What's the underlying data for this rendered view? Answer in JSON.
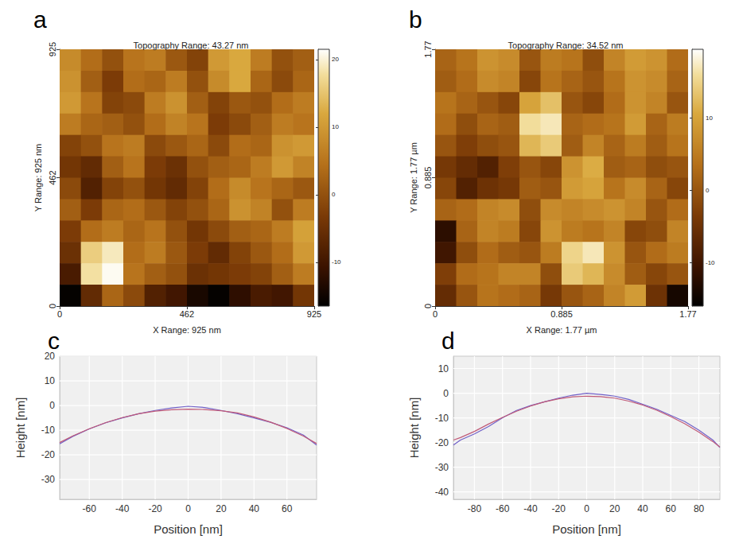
{
  "chart_data": [
    {
      "type": "heatmap",
      "panel": "a",
      "title": "Topography Range: 43.27 nm",
      "xlabel": "X Range: 925 nm",
      "ylabel": "Y Range: 925 nm",
      "xlim": [
        0,
        925
      ],
      "ylim": [
        0,
        925
      ],
      "xticks": [
        0,
        462,
        925
      ],
      "yticks": [
        0,
        462,
        925
      ],
      "cells": [
        [
          8,
          4,
          0,
          5,
          6,
          1,
          -2,
          10,
          12,
          6,
          0,
          2
        ],
        [
          9,
          2,
          -3,
          4,
          3,
          6,
          0,
          8,
          12,
          3,
          -1,
          3
        ],
        [
          10,
          5,
          -2,
          -1,
          6,
          9,
          2,
          -2,
          1,
          0,
          4,
          6
        ],
        [
          6,
          3,
          2,
          0,
          4,
          7,
          5,
          -3,
          -1,
          2,
          6,
          5
        ],
        [
          -2,
          0,
          5,
          6,
          -1,
          1,
          3,
          -1,
          4,
          3,
          9,
          10
        ],
        [
          -4,
          -6,
          2,
          5,
          -3,
          -5,
          0,
          2,
          3,
          6,
          10,
          7
        ],
        [
          -1,
          -8,
          -2,
          0,
          -4,
          -6,
          -2,
          4,
          8,
          5,
          3,
          1
        ],
        [
          2,
          -3,
          3,
          4,
          1,
          -2,
          0,
          3,
          9,
          7,
          0,
          6
        ],
        [
          -3,
          4,
          6,
          3,
          5,
          0,
          -4,
          -1,
          2,
          3,
          6,
          11
        ],
        [
          -5,
          16,
          19,
          4,
          6,
          1,
          -3,
          -6,
          -2,
          1,
          4,
          10
        ],
        [
          -9,
          18,
          21,
          5,
          2,
          0,
          -5,
          -4,
          -3,
          -2,
          2,
          6
        ],
        [
          -16,
          -6,
          3,
          -1,
          -8,
          -10,
          -14,
          -16,
          -12,
          -9,
          -10,
          -4
        ]
      ],
      "colorbar": {
        "range": [
          -16.5,
          21.5
        ],
        "ticks": [
          -10,
          0,
          10,
          20
        ]
      }
    },
    {
      "type": "heatmap",
      "panel": "b",
      "title": "Topography Range: 34.52 nm",
      "xlabel": "X Range: 1.77 µm",
      "ylabel": "Y Range: 1.77 µm",
      "xlim": [
        0,
        1.77
      ],
      "ylim": [
        0,
        1.77
      ],
      "xticks": [
        0,
        0.885,
        1.77
      ],
      "yticks": [
        0,
        0.885,
        1.77
      ],
      "cells": [
        [
          2,
          4,
          8,
          7,
          0,
          5,
          4,
          -1,
          6,
          9,
          8,
          3
        ],
        [
          1,
          3,
          7,
          6,
          -2,
          4,
          2,
          0,
          4,
          8,
          7,
          2
        ],
        [
          4,
          2,
          0,
          -2,
          10,
          13,
          0,
          -2,
          3,
          8,
          6,
          0
        ],
        [
          3,
          -1,
          2,
          1,
          16,
          17,
          2,
          3,
          4,
          9,
          2,
          5
        ],
        [
          0,
          -3,
          -1,
          0,
          12,
          14,
          1,
          6,
          2,
          5,
          1,
          4
        ],
        [
          -4,
          -6,
          -8,
          -3,
          0,
          -2,
          8,
          11,
          1,
          2,
          -1,
          0
        ],
        [
          -2,
          -8,
          -5,
          -4,
          1,
          0,
          9,
          10,
          4,
          7,
          2,
          -2
        ],
        [
          2,
          3,
          6,
          7,
          -1,
          7,
          6,
          7,
          8,
          6,
          0,
          3
        ],
        [
          -12,
          2,
          6,
          5,
          -2,
          8,
          5,
          4,
          6,
          -2,
          -1,
          6
        ],
        [
          -10,
          -1,
          3,
          1,
          0,
          5,
          15,
          17,
          8,
          0,
          3,
          5
        ],
        [
          -3,
          3,
          4,
          6,
          6,
          -1,
          14,
          12,
          7,
          1,
          -2,
          0
        ],
        [
          -6,
          0,
          4,
          3,
          2,
          -4,
          0,
          2,
          6,
          9,
          -5,
          -14
        ]
      ],
      "colorbar": {
        "range": [
          -16,
          19.5
        ],
        "ticks": [
          -10,
          0,
          10
        ]
      }
    },
    {
      "type": "line",
      "panel": "c",
      "xlabel": "Position [nm]",
      "ylabel": "Height [nm]",
      "x": [
        -78,
        -70,
        -60,
        -50,
        -40,
        -30,
        -20,
        -10,
        0,
        10,
        20,
        30,
        40,
        50,
        60,
        70,
        78
      ],
      "series": [
        {
          "color": "#7060c8",
          "values": [
            -15.5,
            -12.5,
            -9.5,
            -7,
            -5,
            -3.3,
            -2,
            -1,
            -0.3,
            -0.8,
            -2,
            -3.3,
            -5,
            -6.8,
            -9,
            -12,
            -16
          ]
        },
        {
          "color": "#c05a78",
          "values": [
            -15,
            -12.3,
            -9.4,
            -6.9,
            -4.9,
            -3.3,
            -2.3,
            -1.7,
            -1.5,
            -1.6,
            -2.1,
            -3,
            -4.6,
            -6.7,
            -9.3,
            -12.4,
            -15.4
          ]
        }
      ],
      "xlim": [
        -78,
        78
      ],
      "ylim": [
        -38,
        20
      ],
      "xticks": [
        -60,
        -40,
        -20,
        0,
        20,
        40,
        60
      ],
      "yticks": [
        -30,
        -20,
        -10,
        0,
        10,
        20
      ],
      "grid": true
    },
    {
      "type": "line",
      "panel": "d",
      "xlabel": "Position [nm]",
      "ylabel": "Height [nm]",
      "x": [
        -95,
        -90,
        -80,
        -70,
        -60,
        -50,
        -40,
        -30,
        -20,
        -10,
        0,
        10,
        20,
        30,
        40,
        50,
        60,
        70,
        80,
        90,
        95
      ],
      "series": [
        {
          "color": "#7060c8",
          "values": [
            -21,
            -19,
            -16.5,
            -13.5,
            -10,
            -7,
            -5,
            -3.5,
            -2,
            -0.8,
            0,
            -0.5,
            -1.2,
            -2.5,
            -4.5,
            -6.5,
            -9,
            -11.5,
            -15,
            -19,
            -22
          ]
        },
        {
          "color": "#c05a78",
          "values": [
            -19,
            -18,
            -15.5,
            -12.5,
            -9.8,
            -7.3,
            -5.2,
            -3.5,
            -2.3,
            -1.5,
            -1.2,
            -1.4,
            -2,
            -3.2,
            -4.8,
            -6.9,
            -9.5,
            -12.4,
            -15.8,
            -19.6,
            -21.8
          ]
        }
      ],
      "xlim": [
        -95,
        95
      ],
      "ylim": [
        -43,
        15
      ],
      "xticks": [
        -80,
        -60,
        -40,
        -20,
        0,
        20,
        40,
        60,
        80
      ],
      "yticks": [
        -40,
        -30,
        -20,
        -10,
        0,
        10
      ],
      "grid": true
    }
  ]
}
